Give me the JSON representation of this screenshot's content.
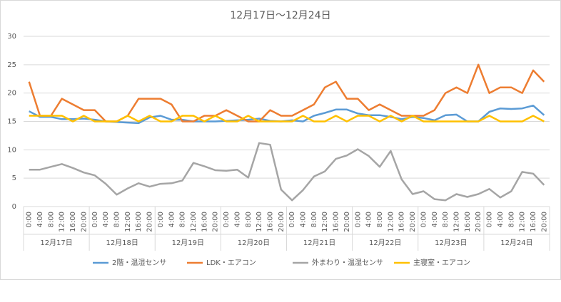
{
  "chart_data": {
    "type": "line",
    "title": "12月17日～12月24日",
    "categories": [
      "0:00",
      "4:00",
      "8:00",
      "12:00",
      "16:00",
      "20:00",
      "0:00",
      "4:00",
      "8:00",
      "12:00",
      "16:00",
      "20:00",
      "0:00",
      "4:00",
      "8:00",
      "12:00",
      "16:00",
      "20:00",
      "0:00",
      "4:00",
      "8:00",
      "12:00",
      "16:00",
      "20:00",
      "0:00",
      "4:00",
      "8:00",
      "12:00",
      "16:00",
      "20:00",
      "0:00",
      "4:00",
      "8:00",
      "12:00",
      "16:00",
      "20:00",
      "0:00",
      "4:00",
      "8:00",
      "12:00",
      "16:00",
      "20:00",
      "0:00",
      "4:00",
      "8:00",
      "12:00",
      "16:00",
      "20:00"
    ],
    "groups": [
      "12月17日",
      "12月18日",
      "12月19日",
      "12月20日",
      "12月21日",
      "12月22日",
      "12月23日",
      "12月24日"
    ],
    "series": [
      {
        "name": "2階・温湿センサ",
        "color": "#5b9bd5",
        "values": [
          16.8,
          15.8,
          15.8,
          15.4,
          15.4,
          15.5,
          15.3,
          15,
          14.9,
          14.8,
          14.7,
          15.7,
          16,
          15.3,
          15.3,
          15,
          15,
          15,
          15.1,
          15.2,
          15.3,
          15.5,
          15.1,
          15,
          15.2,
          15,
          16,
          16.5,
          17.1,
          17.1,
          16.4,
          16.1,
          16.1,
          15.8,
          15.4,
          15.8,
          15.6,
          15.2,
          16.1,
          16.2,
          15,
          15,
          16.7,
          17.3,
          17.2,
          17.3,
          17.8,
          16.1
        ]
      },
      {
        "name": "LDK・エアコン",
        "color": "#ed7d31",
        "values": [
          22,
          16,
          16,
          19,
          18,
          17,
          17,
          15,
          15,
          16,
          19,
          19,
          19,
          18,
          15,
          15,
          16,
          16,
          17,
          16,
          15,
          15,
          17,
          16,
          16,
          17,
          18,
          21,
          22,
          19,
          19,
          17,
          18,
          17,
          16,
          16,
          16,
          17,
          20,
          21,
          20,
          25,
          20,
          21,
          21,
          20,
          24,
          22
        ]
      },
      {
        "name": "外まわり・温湿センサ",
        "color": "#a5a5a5",
        "values": [
          6.5,
          6.5,
          7,
          7.5,
          6.8,
          6,
          5.5,
          4,
          2.1,
          3.2,
          4.1,
          3.5,
          4,
          4.1,
          4.6,
          7.7,
          7.1,
          6.4,
          6.3,
          6.5,
          5.1,
          11.2,
          10.9,
          3,
          1.1,
          2.9,
          5.3,
          6.2,
          8.4,
          9,
          10.1,
          8.9,
          7,
          9.8,
          4.8,
          2.2,
          2.7,
          1.3,
          1.1,
          2.2,
          1.7,
          2.2,
          3.1,
          1.6,
          2.7,
          6.1,
          5.8,
          3.8
        ]
      },
      {
        "name": "主寝室・エアコン",
        "color": "#ffc000",
        "values": [
          16,
          16,
          16,
          16,
          15,
          16,
          15,
          15,
          15,
          16,
          15,
          16,
          15,
          15,
          16,
          16,
          15,
          16,
          15,
          15,
          16,
          15,
          15,
          15,
          15,
          16,
          15,
          15,
          16,
          15,
          16,
          16,
          15,
          16,
          15,
          16,
          15,
          15,
          15,
          15,
          15,
          15,
          16,
          15,
          15,
          15,
          16,
          15
        ]
      }
    ],
    "ylim": [
      0,
      30
    ],
    "yticks": [
      0,
      5,
      10,
      15,
      20,
      25,
      30
    ],
    "grid": true
  }
}
